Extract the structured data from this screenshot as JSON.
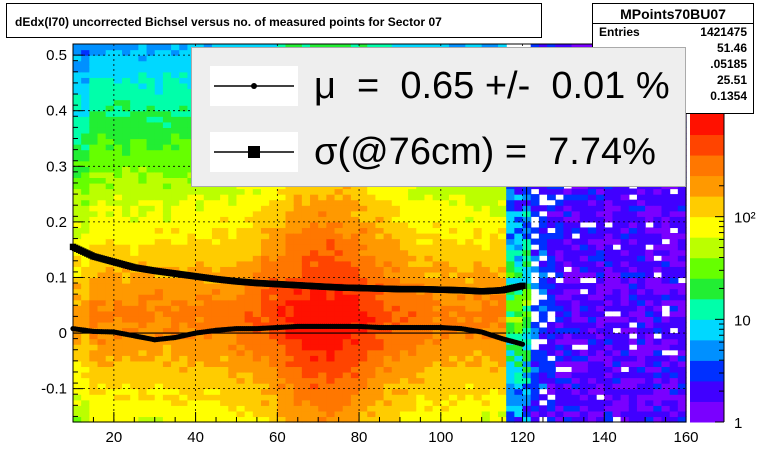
{
  "title": "dEdx(I70) uncorrected Bichsel versus no. of measured points for Sector 07",
  "stats": {
    "name": "MPoints70BU07",
    "rows": [
      {
        "label": "Entries",
        "value": "1421475"
      },
      {
        "label": "",
        "value": "51.46"
      },
      {
        "label": "",
        "value": ".05185"
      },
      {
        "label": "",
        "value": "25.51"
      },
      {
        "label": "",
        "value": "0.1354"
      }
    ]
  },
  "legend": {
    "mu_text": "μ  =  0.65 +/-  0.01 %",
    "sigma_text": "σ(@76cm) =  7.74%"
  },
  "colors": {
    "palette": [
      "#7a00ff",
      "#4000ff",
      "#0030ff",
      "#0090ff",
      "#00d8ff",
      "#00ffaa",
      "#22ee33",
      "#66ff00",
      "#bbff00",
      "#ffff00",
      "#ffcc00",
      "#ff9900",
      "#ff7700",
      "#ff4400",
      "#ff1100"
    ]
  },
  "chart_data": {
    "type": "heatmap",
    "title": "dEdx(I70) uncorrected Bichsel versus no. of measured points for Sector 07",
    "xlim": [
      10,
      160
    ],
    "ylim": [
      -0.16,
      0.52
    ],
    "x_ticks": [
      20,
      40,
      60,
      80,
      100,
      120,
      140,
      160
    ],
    "y_ticks": [
      -0.1,
      0,
      0.1,
      0.2,
      0.3,
      0.4,
      0.5
    ],
    "x_tick_labels": [
      "20",
      "40",
      "60",
      "80",
      "100",
      "120",
      "140",
      "160"
    ],
    "y_tick_labels": [
      "-0.1",
      "0",
      "0.1",
      "0.2",
      "0.3",
      "0.4",
      "0.5"
    ],
    "z_scale": "log",
    "z_range": [
      1,
      1000
    ],
    "z_tick_labels": [
      "1",
      "10",
      "10²"
    ],
    "z_tick_values": [
      1,
      10,
      100
    ],
    "grid": true,
    "series": [
      {
        "name": "μ",
        "marker": "small-circle",
        "x": [
          10,
          15,
          20,
          25,
          30,
          35,
          40,
          45,
          50,
          55,
          60,
          65,
          70,
          75,
          80,
          85,
          90,
          95,
          100,
          105,
          110,
          115,
          120
        ],
        "y": [
          0.008,
          0.003,
          0.002,
          -0.005,
          -0.012,
          -0.008,
          0.0,
          0.005,
          0.008,
          0.008,
          0.01,
          0.012,
          0.012,
          0.012,
          0.012,
          0.01,
          0.01,
          0.01,
          0.01,
          0.008,
          0.002,
          -0.01,
          -0.02
        ]
      },
      {
        "name": "σ(@76cm)",
        "marker": "square",
        "x": [
          10,
          15,
          20,
          25,
          30,
          35,
          40,
          45,
          50,
          55,
          60,
          65,
          70,
          75,
          80,
          85,
          90,
          95,
          100,
          105,
          110,
          115,
          120
        ],
        "y": [
          0.155,
          0.138,
          0.128,
          0.118,
          0.112,
          0.107,
          0.102,
          0.097,
          0.093,
          0.09,
          0.088,
          0.086,
          0.084,
          0.082,
          0.081,
          0.08,
          0.079,
          0.079,
          0.078,
          0.077,
          0.075,
          0.077,
          0.085
        ]
      }
    ]
  }
}
